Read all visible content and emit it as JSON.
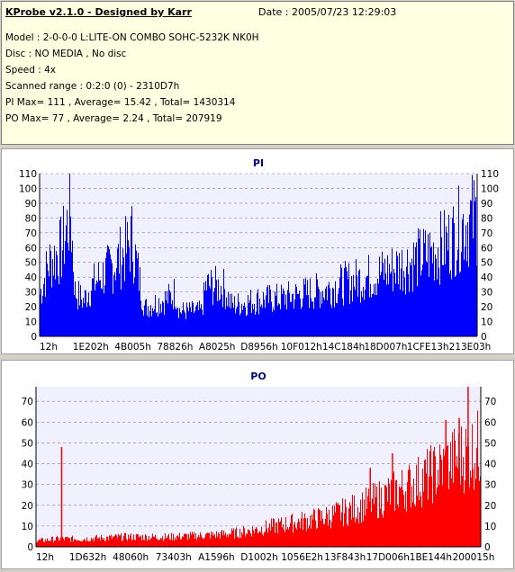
{
  "info": {
    "title": "KProbe v2.1.0 - Designed by Karr",
    "date": "Date : 2005/07/23 12:29:03",
    "lines": [
      "Model : 2-0-0-0 L:LITE-ON COMBO SOHC-5232K NK0H",
      "Disc : NO MEDIA , No disc",
      "Speed : 4x",
      "Scanned range : 0:2:0 (0) - 2310D7h",
      "PI Max= 111 , Average= 15.42 , Total= 1430314",
      "PO Max= 77 , Average= 2.24 , Total= 207919"
    ]
  },
  "colors": {
    "pi": "#0000ff",
    "po": "#ff0000",
    "plot_bg": "#f0f0ff",
    "grid": "#808080"
  },
  "chart_data": [
    {
      "type": "area",
      "title": "PI",
      "ylim": [
        0,
        110
      ],
      "yticks": [
        0,
        10,
        20,
        30,
        40,
        50,
        60,
        70,
        80,
        90,
        100,
        110
      ],
      "xticks": [
        "12h",
        "1E202h",
        "4B005h",
        "78826h",
        "A8025h",
        "D8956h",
        "10F012h",
        "14C184h",
        "18D007h",
        "1CFE13h",
        "213E03h"
      ],
      "x": [
        0,
        0.02,
        0.05,
        0.07,
        0.08,
        0.1,
        0.11,
        0.13,
        0.16,
        0.2,
        0.21,
        0.24,
        0.25,
        0.3,
        0.31,
        0.32,
        0.37,
        0.38,
        0.42,
        0.44,
        0.47,
        0.5,
        0.55,
        0.6,
        0.65,
        0.7,
        0.75,
        0.8,
        0.85,
        0.9,
        0.94,
        0.97,
        1.0
      ],
      "values": [
        30,
        52,
        62,
        90,
        32,
        25,
        32,
        40,
        48,
        62,
        70,
        20,
        22,
        28,
        32,
        18,
        18,
        36,
        35,
        22,
        24,
        26,
        27,
        30,
        33,
        38,
        42,
        47,
        53,
        60,
        68,
        80,
        85
      ]
    },
    {
      "type": "area",
      "title": "PO",
      "ylim": [
        0,
        77
      ],
      "yticks": [
        0,
        10,
        20,
        30,
        40,
        50,
        60,
        70
      ],
      "xticks": [
        "12h",
        "1D632h",
        "48060h",
        "73403h",
        "A1596h",
        "D1002h",
        "1056E2h",
        "13F843h",
        "17D006h",
        "1BE144h",
        "200015h"
      ],
      "x": [
        0,
        0.05,
        0.1,
        0.2,
        0.3,
        0.4,
        0.45,
        0.5,
        0.55,
        0.6,
        0.65,
        0.7,
        0.75,
        0.8,
        0.85,
        0.9,
        0.95,
        1.0
      ],
      "values": [
        3,
        4,
        4,
        5,
        5,
        6,
        7,
        9,
        11,
        13,
        15,
        18,
        22,
        27,
        32,
        38,
        45,
        50
      ],
      "spikes": [
        {
          "x": 0.056,
          "y": 48
        },
        {
          "x": 0.92,
          "y": 61
        },
        {
          "x": 0.97,
          "y": 77
        },
        {
          "x": 0.95,
          "y": 62
        },
        {
          "x": 0.8,
          "y": 45
        },
        {
          "x": 0.75,
          "y": 38
        }
      ]
    }
  ]
}
